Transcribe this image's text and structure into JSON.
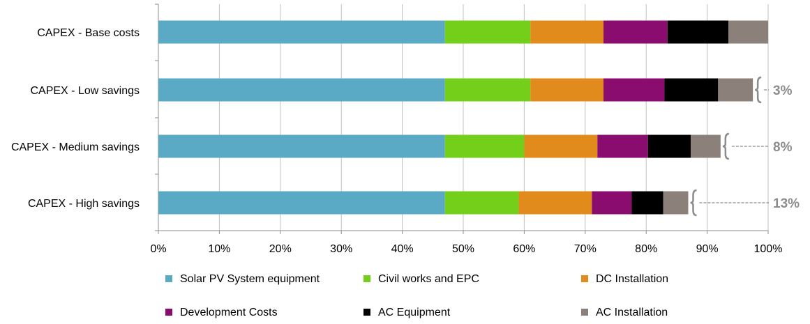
{
  "chart_data": {
    "type": "bar",
    "orientation": "horizontal",
    "stacked": true,
    "categories": [
      "CAPEX - Base costs",
      "CAPEX - Low savings",
      "CAPEX - Medium savings",
      "CAPEX - High savings"
    ],
    "series": [
      {
        "name": "Solar PV System equipment",
        "color": "#5aaac6",
        "values": [
          47,
          47,
          47,
          47
        ]
      },
      {
        "name": "Civil works and EPC",
        "color": "#74cf1b",
        "values": [
          14,
          14,
          13,
          12.1
        ]
      },
      {
        "name": "DC Installation",
        "color": "#e18b1c",
        "values": [
          12,
          12,
          12,
          12
        ]
      },
      {
        "name": "Development Costs",
        "color": "#8a0c6e",
        "values": [
          10.5,
          10,
          8.3,
          6.5
        ]
      },
      {
        "name": "AC Equipment",
        "color": "#000000",
        "values": [
          10,
          8.8,
          7,
          5.2
        ]
      },
      {
        "name": "AC Installation",
        "color": "#8c817a",
        "values": [
          6.5,
          5.7,
          4.9,
          4.1
        ]
      }
    ],
    "xlim": [
      0,
      100
    ],
    "x_ticks": [
      "0%",
      "10%",
      "20%",
      "30%",
      "40%",
      "50%",
      "60%",
      "70%",
      "80%",
      "90%",
      "100%"
    ],
    "grid": true,
    "legend_position": "bottom",
    "annotations": [
      {
        "category": "CAPEX - Low savings",
        "text": "3%"
      },
      {
        "category": "CAPEX - Medium savings",
        "text": "8%"
      },
      {
        "category": "CAPEX - High savings",
        "text": "13%"
      }
    ]
  }
}
